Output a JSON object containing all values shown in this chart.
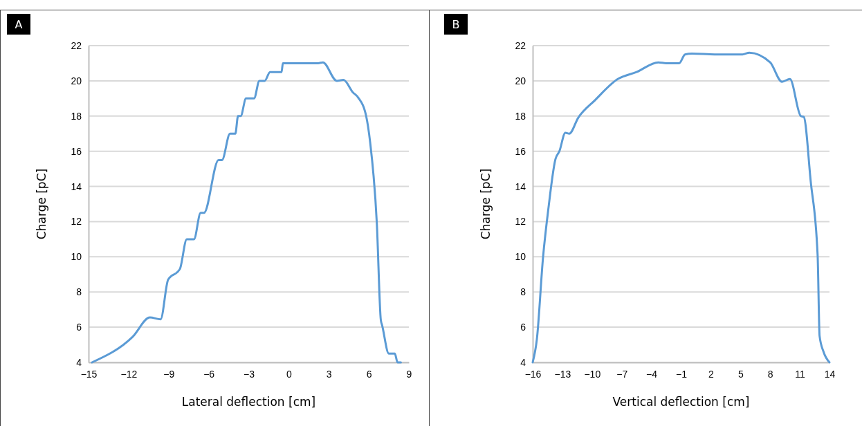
{
  "chart_data": [
    {
      "type": "line",
      "title": "A",
      "xlabel": "Lateral deflection [cm]",
      "ylabel": "Charge [pC]",
      "xlim": [
        -15,
        9
      ],
      "ylim": [
        4,
        22
      ],
      "xticks": [
        {
          "value": -15,
          "label": "−15"
        },
        {
          "value": -12,
          "label": "−12"
        },
        {
          "value": -9,
          "label": "−9"
        },
        {
          "value": -6,
          "label": "−6"
        },
        {
          "value": -3,
          "label": "−3"
        },
        0,
        3,
        6,
        9
      ],
      "yticks": [
        4,
        6,
        8,
        10,
        12,
        14,
        16,
        18,
        20,
        22
      ],
      "grid": "y",
      "marker": "none",
      "line_style": "solid",
      "series": [
        {
          "color": "#5b9bd5",
          "x": [
            -14.74,
            -11.7,
            -10.4,
            -9.6,
            -9.04,
            -8.16,
            -7.64,
            -7.1,
            -6.6,
            -6.35,
            -5.26,
            -5.0,
            -4.4,
            -4.0,
            -3.8,
            -3.6,
            -3.2,
            -2.6,
            -2.2,
            -1.8,
            -1.4,
            -0.54,
            -0.44,
            2.2,
            2.56,
            3.6,
            4.1,
            4.8,
            5.2,
            5.8,
            6.1,
            6.6,
            6.9,
            7.0,
            7.5,
            7.95,
            8.15,
            8.4
          ],
          "values": [
            4,
            5.45,
            6.55,
            6.45,
            8.7,
            9.3,
            11,
            11,
            12.5,
            12.5,
            15.5,
            15.5,
            17,
            17,
            18,
            18,
            19,
            19,
            20,
            20,
            20.5,
            20.5,
            21,
            21,
            21.05,
            20,
            20.05,
            19.35,
            19.05,
            18,
            16.5,
            11.9,
            6.4,
            6.1,
            4.5,
            4.5,
            4,
            4
          ]
        }
      ]
    },
    {
      "type": "line",
      "title": "B",
      "xlabel": "Vertical deflection [cm]",
      "ylabel": "Charge [pC]",
      "xlim": [
        -16,
        14
      ],
      "ylim": [
        4,
        22
      ],
      "xticks": [
        {
          "value": -16,
          "label": "−16"
        },
        {
          "value": -13,
          "label": "−13"
        },
        {
          "value": -10,
          "label": "−10"
        },
        {
          "value": -7,
          "label": "−7"
        },
        {
          "value": -4,
          "label": "−4"
        },
        {
          "value": -1,
          "label": "−1"
        },
        2,
        5,
        8,
        11,
        14
      ],
      "yticks": [
        4,
        6,
        8,
        10,
        12,
        14,
        16,
        18,
        20,
        22
      ],
      "grid": "y",
      "marker": "none",
      "line_style": "solid",
      "series": [
        {
          "color": "#5b9bd5",
          "x": [
            -16,
            -15.58,
            -14.95,
            -14.4,
            -13.7,
            -13.3,
            -12.7,
            -12.3,
            -11.4,
            -9.7,
            -7.4,
            -5.5,
            -3.3,
            -2.5,
            -1.2,
            -0.6,
            0.1,
            2.4,
            5.2,
            5.9,
            8.0,
            9.2,
            10.0,
            11.1,
            11.4,
            12.1,
            12.8,
            13.0,
            13.4,
            14.0
          ],
          "values": [
            4,
            5.3,
            10,
            12.8,
            15.55,
            16,
            17.05,
            17,
            17.9,
            18.9,
            20.1,
            20.5,
            21.05,
            21,
            21,
            21.5,
            21.55,
            21.5,
            21.5,
            21.6,
            21.05,
            19.95,
            20.1,
            18,
            17.95,
            14.3,
            10.1,
            5.5,
            4.6,
            4
          ]
        }
      ]
    }
  ]
}
